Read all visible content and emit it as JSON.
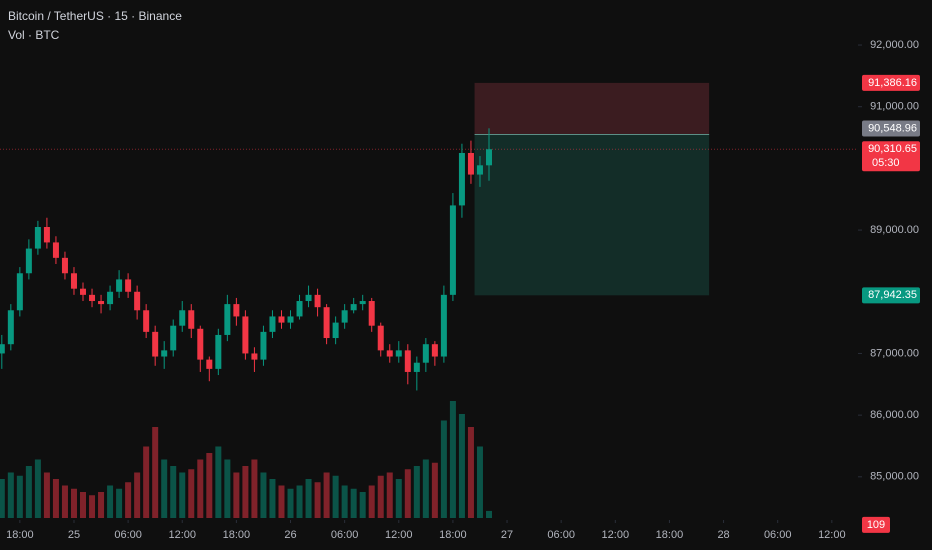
{
  "chart_data": {
    "type": "candlestick",
    "title": "Bitcoin / TetherUS · 15 · Binance",
    "subtitle": "Vol · BTC",
    "x": [
      16,
      17,
      18,
      19,
      20,
      21,
      22,
      23,
      24,
      25,
      26,
      27,
      28,
      29,
      30,
      31,
      32,
      33,
      34,
      35,
      36,
      37,
      38,
      39,
      40,
      41,
      42,
      43,
      44,
      45,
      46,
      47,
      48,
      49,
      50,
      51,
      52,
      53,
      54,
      55,
      56,
      57,
      58,
      59,
      60,
      61,
      62,
      63,
      64,
      65,
      66,
      67,
      68,
      69,
      70
    ],
    "open": [
      87000,
      87150,
      87700,
      88300,
      88700,
      89050,
      88800,
      88550,
      88300,
      88050,
      87950,
      87850,
      87800,
      88000,
      88200,
      88000,
      87700,
      87350,
      86950,
      87050,
      87450,
      87700,
      87400,
      86900,
      86750,
      87300,
      87800,
      87600,
      87000,
      86900,
      87350,
      87600,
      87500,
      87600,
      87850,
      87950,
      87750,
      87250,
      87500,
      87700,
      87800,
      87850,
      87450,
      87050,
      86950,
      87050,
      86700,
      86850,
      87150,
      86950,
      87950,
      89400,
      90250,
      89900,
      90050
    ],
    "high": [
      87300,
      87800,
      88400,
      88850,
      89150,
      89200,
      88900,
      88650,
      88400,
      88150,
      88050,
      87950,
      88100,
      88350,
      88300,
      88100,
      87800,
      87450,
      87200,
      87550,
      87850,
      87800,
      87450,
      86950,
      87400,
      87950,
      87900,
      87700,
      87100,
      87450,
      87700,
      87700,
      87700,
      87950,
      88100,
      88050,
      87800,
      87600,
      87800,
      87900,
      87950,
      87900,
      87500,
      87150,
      87200,
      87150,
      86950,
      87250,
      87200,
      88100,
      89600,
      90400,
      90450,
      90200,
      90650
    ],
    "low": [
      86750,
      87050,
      87600,
      88200,
      88600,
      88700,
      88450,
      88200,
      87950,
      87850,
      87750,
      87650,
      87700,
      87900,
      87900,
      87550,
      87250,
      86800,
      86750,
      86950,
      87350,
      87250,
      86700,
      86550,
      86650,
      87200,
      87450,
      86900,
      86700,
      86800,
      87250,
      87400,
      87400,
      87550,
      87750,
      87600,
      87150,
      87150,
      87400,
      87650,
      87700,
      87350,
      86950,
      86850,
      86850,
      86500,
      86400,
      86700,
      86800,
      86850,
      87850,
      89200,
      89750,
      89700,
      89800
    ],
    "close": [
      87150,
      87700,
      88300,
      88700,
      89050,
      88800,
      88550,
      88300,
      88050,
      87950,
      87850,
      87800,
      88000,
      88200,
      88000,
      87700,
      87350,
      86950,
      87050,
      87450,
      87700,
      87400,
      86900,
      86750,
      87300,
      87800,
      87600,
      87000,
      86900,
      87350,
      87600,
      87500,
      87600,
      87850,
      87950,
      87750,
      87250,
      87500,
      87700,
      87800,
      87850,
      87450,
      87050,
      86950,
      87050,
      86700,
      86850,
      87150,
      86950,
      87950,
      89400,
      90250,
      89900,
      90050,
      90310.65
    ],
    "volume": [
      600,
      700,
      650,
      800,
      900,
      700,
      600,
      500,
      450,
      400,
      350,
      400,
      500,
      450,
      550,
      700,
      1100,
      1400,
      900,
      800,
      700,
      750,
      900,
      1000,
      1100,
      900,
      700,
      800,
      900,
      700,
      600,
      500,
      450,
      500,
      600,
      550,
      700,
      650,
      500,
      450,
      400,
      500,
      650,
      700,
      600,
      750,
      800,
      900,
      850,
      1500,
      1800,
      1600,
      1400,
      1100,
      109
    ],
    "up_color": "#089981",
    "down_color": "#f23645",
    "xlim": [
      15.8,
      110.9
    ],
    "xticks": [
      {
        "value": 18,
        "label": "18:00"
      },
      {
        "value": 24,
        "label": "25"
      },
      {
        "value": 30,
        "label": "06:00"
      },
      {
        "value": 36,
        "label": "12:00"
      },
      {
        "value": 42,
        "label": "18:00"
      },
      {
        "value": 48,
        "label": "26"
      },
      {
        "value": 54,
        "label": "06:00"
      },
      {
        "value": 60,
        "label": "12:00"
      },
      {
        "value": 66,
        "label": "18:00"
      },
      {
        "value": 72,
        "label": "27"
      },
      {
        "value": 78,
        "label": "06:00"
      },
      {
        "value": 84,
        "label": "12:00"
      },
      {
        "value": 90,
        "label": "18:00"
      },
      {
        "value": 96,
        "label": "28"
      },
      {
        "value": 102,
        "label": "06:00"
      },
      {
        "value": 108,
        "label": "12:00"
      }
    ],
    "ylim": [
      84300,
      92730
    ],
    "yticks": [
      {
        "value": 92000,
        "label": "92,000.00"
      },
      {
        "value": 91000,
        "label": "91,000.00"
      },
      {
        "value": 89000,
        "label": "89,000.00"
      },
      {
        "value": 87000,
        "label": "87,000.00"
      },
      {
        "value": 86000,
        "label": "86,000.00"
      },
      {
        "value": 85000,
        "label": "85,000.00"
      }
    ],
    "volume_lim": [
      0,
      2000
    ],
    "position": {
      "x_start": 68.4,
      "x_end": 94.4,
      "stop": {
        "value": 91386.16,
        "label": "91,386.16"
      },
      "entry": {
        "value": 90548.96,
        "label": "90,548.96"
      },
      "target": {
        "value": 87942.35,
        "label": "87,942.35"
      }
    },
    "last_price": {
      "value": 90310.65,
      "label": "90,310.65"
    },
    "countdown": "05:30"
  }
}
